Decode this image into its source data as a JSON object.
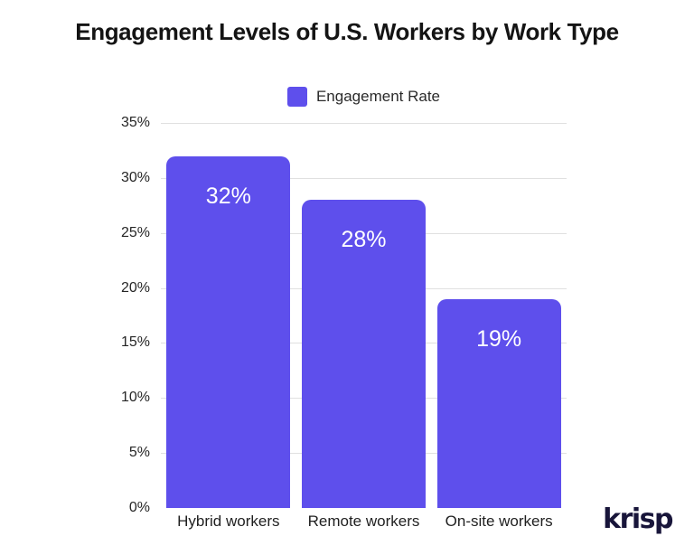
{
  "chart_data": {
    "type": "bar",
    "title": "Engagement Levels of U.S. Workers by Work Type",
    "categories": [
      "Hybrid workers",
      "Remote workers",
      "On-site workers"
    ],
    "series": [
      {
        "name": "Engagement Rate",
        "values": [
          32,
          28,
          19
        ]
      }
    ],
    "value_labels": [
      "32%",
      "28%",
      "19%"
    ],
    "xlabel": "",
    "ylabel": "",
    "ylim": [
      0,
      35
    ],
    "ytick_values": [
      0,
      5,
      10,
      15,
      20,
      25,
      30,
      35
    ],
    "ytick_labels": [
      "0%",
      "5%",
      "10%",
      "15%",
      "20%",
      "25%",
      "30%",
      "35%"
    ],
    "grid": true,
    "legend_position": "top-center",
    "bar_color": "#5E4FEC",
    "gridline_color": "#E0E0E0",
    "value_label_color": "#FFFFFF"
  },
  "legend": {
    "label": "Engagement Rate"
  },
  "footer": {
    "logo_text": "krisp",
    "logo_color": "#18153A"
  }
}
